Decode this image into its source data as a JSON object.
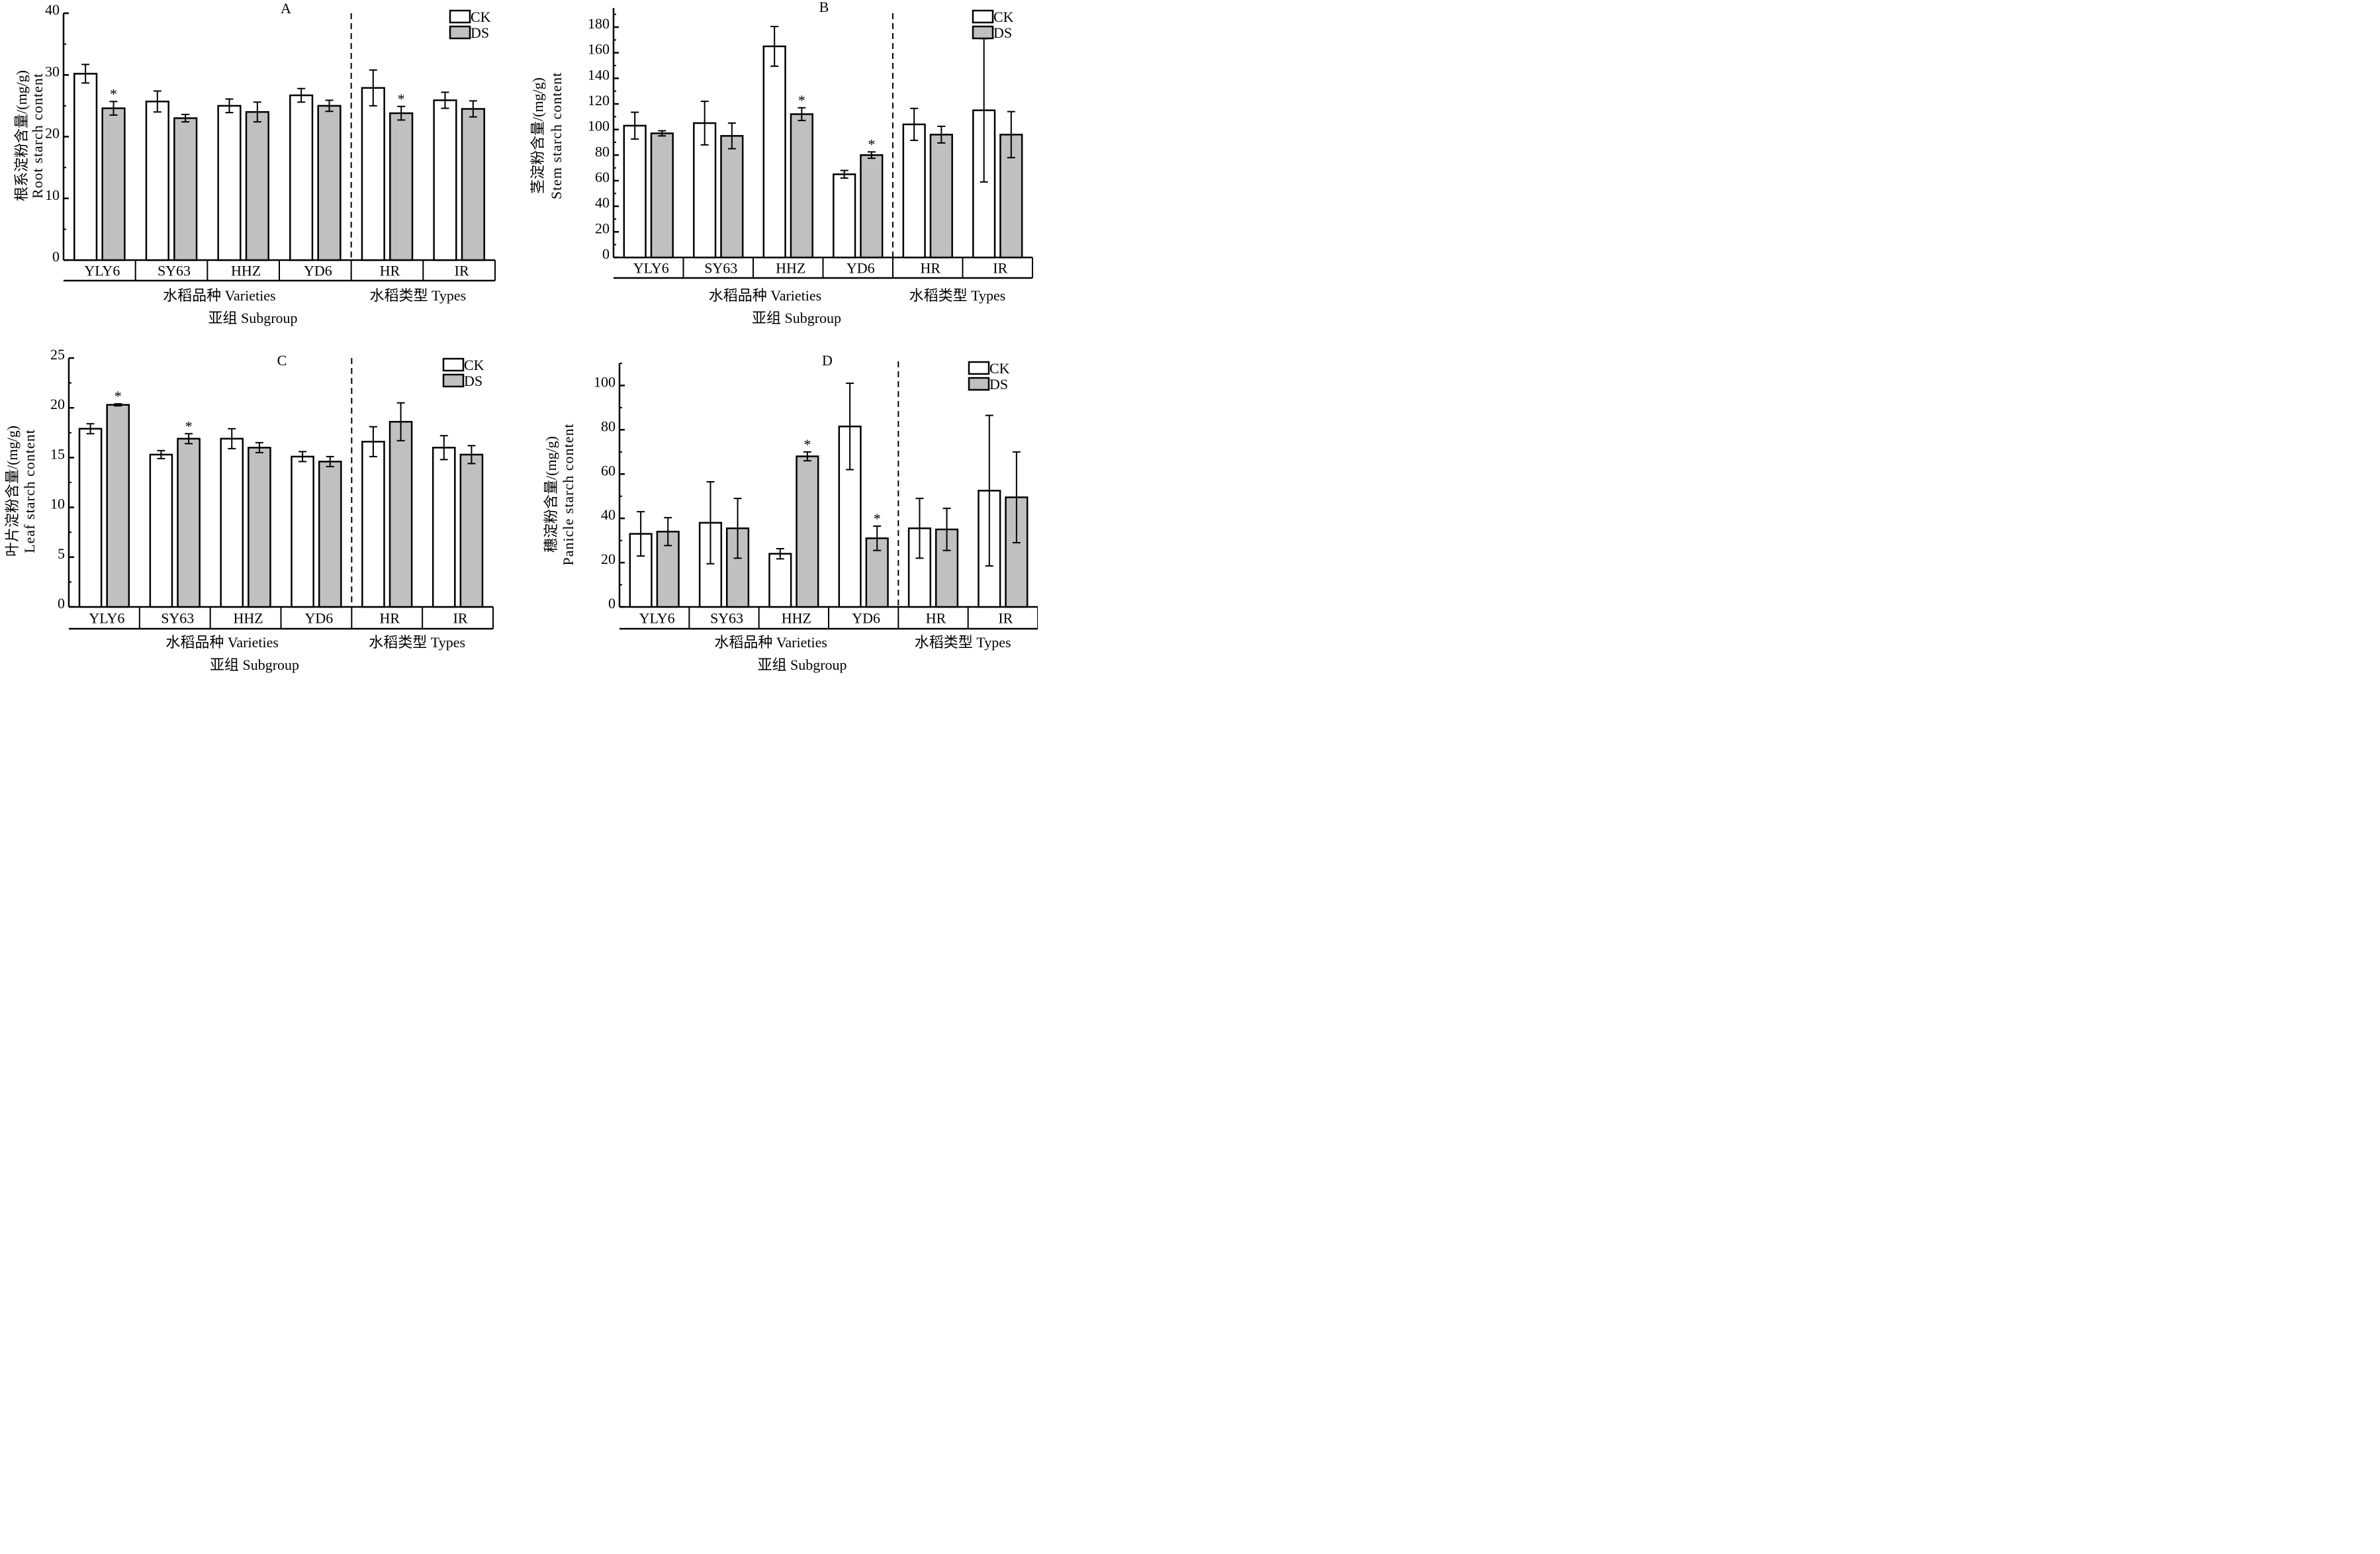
{
  "chart_data": [
    {
      "type": "bar",
      "panel_label": "A",
      "ylabel_cn": "根系淀粉含量/(mg/g)",
      "ylabel_en": "Root starch content",
      "ylim": [
        0,
        40
      ],
      "yticks": [
        0,
        10,
        20,
        30,
        40
      ],
      "minor_step": 5,
      "categories": [
        "YLY6",
        "SY63",
        "HHZ",
        "YD6",
        "HR",
        "IR"
      ],
      "group_labels": [
        "水稻品种 Varieties",
        "水稻类型  Types"
      ],
      "xlabel": "亚组  Subgroup",
      "legend": [
        "CK",
        "DS"
      ],
      "legend_position": "top-right",
      "divider_after_index": 3,
      "grid": false,
      "series": [
        {
          "name": "CK",
          "values": [
            30.2,
            25.7,
            25.0,
            26.7,
            27.9,
            25.9
          ],
          "errors": [
            1.5,
            1.7,
            1.1,
            1.1,
            2.9,
            1.3
          ],
          "significant": [
            false,
            false,
            false,
            false,
            false,
            false
          ]
        },
        {
          "name": "DS",
          "values": [
            24.6,
            23.0,
            24.0,
            25.0,
            23.8,
            24.5
          ],
          "errors": [
            1.1,
            0.6,
            1.6,
            0.9,
            1.1,
            1.3
          ],
          "significant": [
            true,
            false,
            false,
            false,
            true,
            false
          ]
        }
      ]
    },
    {
      "type": "bar",
      "panel_label": "B",
      "ylabel_cn": "茎淀粉含量/(mg/g)",
      "ylabel_en": "Stem starch content",
      "ylim": [
        0,
        195
      ],
      "yticks": [
        0,
        20,
        40,
        60,
        80,
        100,
        120,
        140,
        160,
        180
      ],
      "minor_step": 10,
      "categories": [
        "YLY6",
        "SY63",
        "HHZ",
        "YD6",
        "HR",
        "IR"
      ],
      "group_labels": [
        "水稻品种 Varieties",
        "水稻类型  Types"
      ],
      "xlabel": "亚组  Subgroup",
      "legend": [
        "CK",
        "DS"
      ],
      "legend_position": "top-right",
      "divider_after_index": 3,
      "grid": false,
      "series": [
        {
          "name": "CK",
          "values": [
            103,
            105,
            165,
            65,
            104,
            115
          ],
          "errors": [
            10.5,
            17,
            15.5,
            3,
            12.5,
            56
          ],
          "significant": [
            false,
            false,
            false,
            false,
            false,
            false
          ]
        },
        {
          "name": "DS",
          "values": [
            97,
            95,
            112,
            80,
            96,
            96
          ],
          "errors": [
            2,
            10,
            5,
            2.5,
            6.5,
            18
          ],
          "significant": [
            false,
            false,
            true,
            true,
            false,
            false
          ]
        }
      ]
    },
    {
      "type": "bar",
      "panel_label": "C",
      "ylabel_cn": "叶片淀粉含量/(mg/g)",
      "ylabel_en": "Leaf starch content",
      "ylim": [
        0,
        25
      ],
      "yticks": [
        0,
        5,
        10,
        15,
        20,
        25
      ],
      "minor_step": 2.5,
      "categories": [
        "YLY6",
        "SY63",
        "HHZ",
        "YD6",
        "HR",
        "IR"
      ],
      "group_labels": [
        "水稻品种 Varieties",
        "水稻类型  Types"
      ],
      "xlabel": "亚组  Subgroup",
      "legend": [
        "CK",
        "DS"
      ],
      "legend_position": "top-right",
      "divider_after_index": 3,
      "grid": false,
      "series": [
        {
          "name": "CK",
          "values": [
            17.9,
            15.3,
            16.9,
            15.1,
            16.6,
            16.0
          ],
          "errors": [
            0.5,
            0.4,
            1.0,
            0.5,
            1.5,
            1.2
          ],
          "significant": [
            false,
            false,
            false,
            false,
            false,
            false
          ]
        },
        {
          "name": "DS",
          "values": [
            20.3,
            16.9,
            16.0,
            14.6,
            18.6,
            15.3
          ],
          "errors": [
            0.1,
            0.5,
            0.5,
            0.5,
            1.9,
            0.9
          ],
          "significant": [
            true,
            true,
            false,
            false,
            false,
            false
          ]
        }
      ]
    },
    {
      "type": "bar",
      "panel_label": "D",
      "ylabel_cn": "穗淀粉含量/(mg/g)",
      "ylabel_en": "Panicle starch content",
      "ylim": [
        0,
        110
      ],
      "yticks": [
        0,
        20,
        40,
        60,
        80,
        100
      ],
      "minor_step": 10,
      "categories": [
        "YLY6",
        "SY63",
        "HHZ",
        "YD6",
        "HR",
        "IR"
      ],
      "group_labels": [
        "水稻品种 Varieties",
        "水稻类型  Types"
      ],
      "xlabel": "亚组  Subgroup",
      "legend": [
        "CK",
        "DS"
      ],
      "legend_position": "top-right",
      "divider_after_index": 3,
      "grid": false,
      "series": [
        {
          "name": "CK",
          "values": [
            33,
            38,
            24,
            81.5,
            35.5,
            52.5
          ],
          "errors": [
            10,
            18.5,
            2.3,
            19.5,
            13.5,
            34
          ],
          "significant": [
            false,
            false,
            false,
            false,
            false,
            false
          ]
        },
        {
          "name": "DS",
          "values": [
            34,
            35.5,
            68,
            31,
            35,
            49.5
          ],
          "errors": [
            6.3,
            13.5,
            2,
            5.5,
            9.5,
            20.5
          ],
          "significant": [
            false,
            false,
            true,
            true,
            false,
            false
          ]
        }
      ]
    }
  ],
  "colors": {
    "ck_fill": "#ffffff",
    "ds_fill": "#c0c0c0",
    "stroke": "#000000"
  },
  "significance_marker": "*"
}
